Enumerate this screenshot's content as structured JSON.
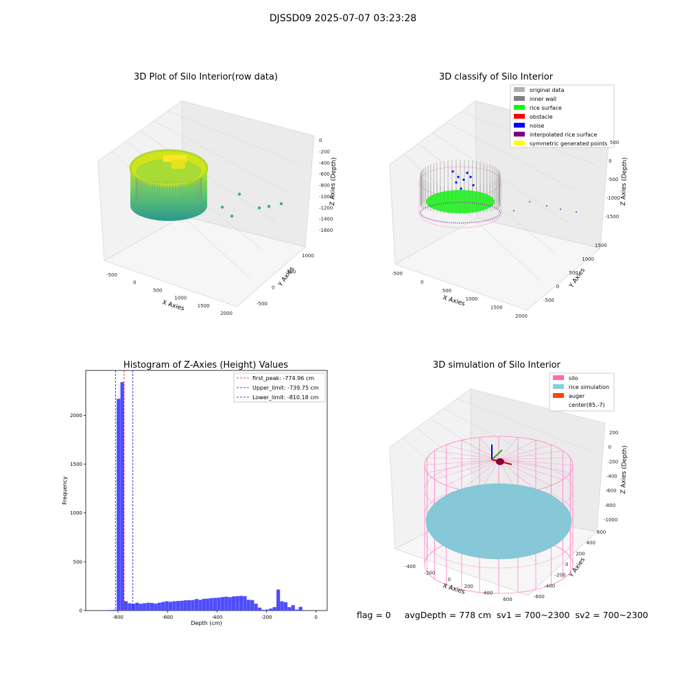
{
  "figure_title": "DJSSD09 2025-07-07 03:23:28",
  "footer": {
    "flag": "flag = 0",
    "avg_depth": "avgDepth = 778 cm",
    "sv1": "sv1 = 700~2300",
    "sv2": "sv2 = 700~2300"
  },
  "colors": {
    "histogram_bar": "#4d4dff",
    "first_peak": "#ff0000",
    "limit_line": "#0000cc",
    "silo_wire": "#ff69b4",
    "rice_sim": "#87cedf",
    "auger": "#ff4500"
  },
  "chart_data": [
    {
      "type": "scatter",
      "subtype": "3d",
      "title": "3D Plot of Silo Interior(row data)",
      "xlabel": "X Axies",
      "ylabel": "Y Axies",
      "zlabel": "Z Axies (Depth)",
      "x_ticks": [
        "-500",
        "0",
        "500",
        "1000",
        "1500",
        "2000"
      ],
      "y_ticks": [
        "-500",
        "0",
        "500",
        "1000"
      ],
      "z_ticks": [
        "0",
        "-200",
        "-400",
        "-600",
        "-800",
        "-1000",
        "-1200",
        "-1400",
        "-1600"
      ],
      "xlim": [
        -700,
        2100
      ],
      "ylim": [
        -700,
        1300
      ],
      "zlim": [
        -1650,
        50
      ],
      "colormap": "viridis",
      "outlier_points": [
        {
          "x": 1300,
          "y": -300,
          "z": -950
        },
        {
          "x": 1700,
          "y": -200,
          "z": -1050
        },
        {
          "x": 1950,
          "y": 0,
          "z": -1000
        },
        {
          "x": 1800,
          "y": 250,
          "z": -1150
        },
        {
          "x": 900,
          "y": 200,
          "z": -1100
        },
        {
          "x": 1250,
          "y": 600,
          "z": -1200
        }
      ]
    },
    {
      "type": "scatter",
      "subtype": "3d",
      "title": "3D classify of Silo Interior",
      "xlabel": "X Axies",
      "ylabel": "Y Axies",
      "zlabel": "Z Axies (Depth)",
      "x_ticks": [
        "-500",
        "0",
        "500",
        "1000",
        "1500",
        "2000"
      ],
      "y_ticks": [
        "-500",
        "0",
        "500",
        "1000",
        "1500"
      ],
      "z_ticks": [
        "500",
        "0",
        "-500",
        "-1000",
        "-1500"
      ],
      "legend_position": "top-right",
      "legend": [
        {
          "label": "original data",
          "color": "#b0b0b0"
        },
        {
          "label": "inner wall",
          "color": "#808080"
        },
        {
          "label": "rice surface",
          "color": "#00ff00"
        },
        {
          "label": "obstacle",
          "color": "#ff0000"
        },
        {
          "label": "noise",
          "color": "#0000ff"
        },
        {
          "label": "interpolated rice surface",
          "color": "#800080"
        },
        {
          "label": "symmetric generated points",
          "color": "#ffff00"
        }
      ]
    },
    {
      "type": "bar",
      "subtype": "histogram",
      "title": "Histogram of Z-Axies (Height) Values",
      "xlabel": "Depth (cm)",
      "ylabel": "Frequency",
      "xlim": [
        -930,
        45
      ],
      "ylim": [
        0,
        2460
      ],
      "x_ticks": [
        -800,
        -600,
        -400,
        -200,
        0
      ],
      "y_ticks": [
        0,
        500,
        1000,
        1500,
        2000
      ],
      "bin_width": 15,
      "bins": [
        {
          "x": -850,
          "v": 5
        },
        {
          "x": -835,
          "v": 6
        },
        {
          "x": -820,
          "v": 8
        },
        {
          "x": -805,
          "v": 2170
        },
        {
          "x": -790,
          "v": 2340
        },
        {
          "x": -775,
          "v": 95
        },
        {
          "x": -760,
          "v": 75
        },
        {
          "x": -745,
          "v": 70
        },
        {
          "x": -730,
          "v": 80
        },
        {
          "x": -715,
          "v": 70
        },
        {
          "x": -700,
          "v": 75
        },
        {
          "x": -685,
          "v": 80
        },
        {
          "x": -670,
          "v": 78
        },
        {
          "x": -655,
          "v": 72
        },
        {
          "x": -640,
          "v": 80
        },
        {
          "x": -625,
          "v": 88
        },
        {
          "x": -610,
          "v": 95
        },
        {
          "x": -595,
          "v": 90
        },
        {
          "x": -580,
          "v": 95
        },
        {
          "x": -565,
          "v": 98
        },
        {
          "x": -550,
          "v": 100
        },
        {
          "x": -535,
          "v": 105
        },
        {
          "x": -520,
          "v": 105
        },
        {
          "x": -505,
          "v": 108
        },
        {
          "x": -490,
          "v": 118
        },
        {
          "x": -475,
          "v": 110
        },
        {
          "x": -460,
          "v": 120
        },
        {
          "x": -445,
          "v": 122
        },
        {
          "x": -430,
          "v": 128
        },
        {
          "x": -415,
          "v": 130
        },
        {
          "x": -400,
          "v": 132
        },
        {
          "x": -385,
          "v": 138
        },
        {
          "x": -370,
          "v": 142
        },
        {
          "x": -355,
          "v": 138
        },
        {
          "x": -340,
          "v": 145
        },
        {
          "x": -325,
          "v": 148
        },
        {
          "x": -310,
          "v": 150
        },
        {
          "x": -295,
          "v": 148
        },
        {
          "x": -280,
          "v": 110
        },
        {
          "x": -265,
          "v": 108
        },
        {
          "x": -250,
          "v": 70
        },
        {
          "x": -235,
          "v": 30
        },
        {
          "x": -220,
          "v": 8
        },
        {
          "x": -205,
          "v": 10
        },
        {
          "x": -190,
          "v": 20
        },
        {
          "x": -175,
          "v": 35
        },
        {
          "x": -160,
          "v": 215
        },
        {
          "x": -145,
          "v": 95
        },
        {
          "x": -130,
          "v": 85
        },
        {
          "x": -115,
          "v": 35
        },
        {
          "x": -100,
          "v": 55
        },
        {
          "x": -85,
          "v": 10
        },
        {
          "x": -70,
          "v": 38
        },
        {
          "x": -55,
          "v": 5
        }
      ],
      "lines": [
        {
          "label": "first_peak: -774.96 cm",
          "x": -774.96,
          "color": "#ff0000"
        },
        {
          "label": "Upper_limit: -739.75 cm",
          "x": -739.75,
          "color": "#0000cc"
        },
        {
          "label": "Lower_limit: -810.18 cm",
          "x": -810.18,
          "color": "#0000cc"
        }
      ],
      "legend_position": "top-right"
    },
    {
      "type": "scatter",
      "subtype": "3d",
      "title": "3D simulation of Silo Interior",
      "xlabel": "X Axies",
      "ylabel": "Y Axies",
      "zlabel": "Z Axies (Depth)",
      "x_ticks": [
        "-400",
        "-200",
        "0",
        "200",
        "400",
        "600"
      ],
      "y_ticks": [
        "-600",
        "-400",
        "-200",
        "0",
        "200",
        "400",
        "600"
      ],
      "z_ticks": [
        "200",
        "0",
        "-200",
        "-400",
        "-600",
        "-800",
        "-1000"
      ],
      "legend_position": "top-right",
      "legend": [
        {
          "label": "silo",
          "color": "#ff69b4"
        },
        {
          "label": "rice simulation",
          "color": "#87cedf"
        },
        {
          "label": "auger",
          "color": "#ff4500"
        },
        {
          "label": "center(85,-7)",
          "color": ""
        }
      ]
    }
  ]
}
